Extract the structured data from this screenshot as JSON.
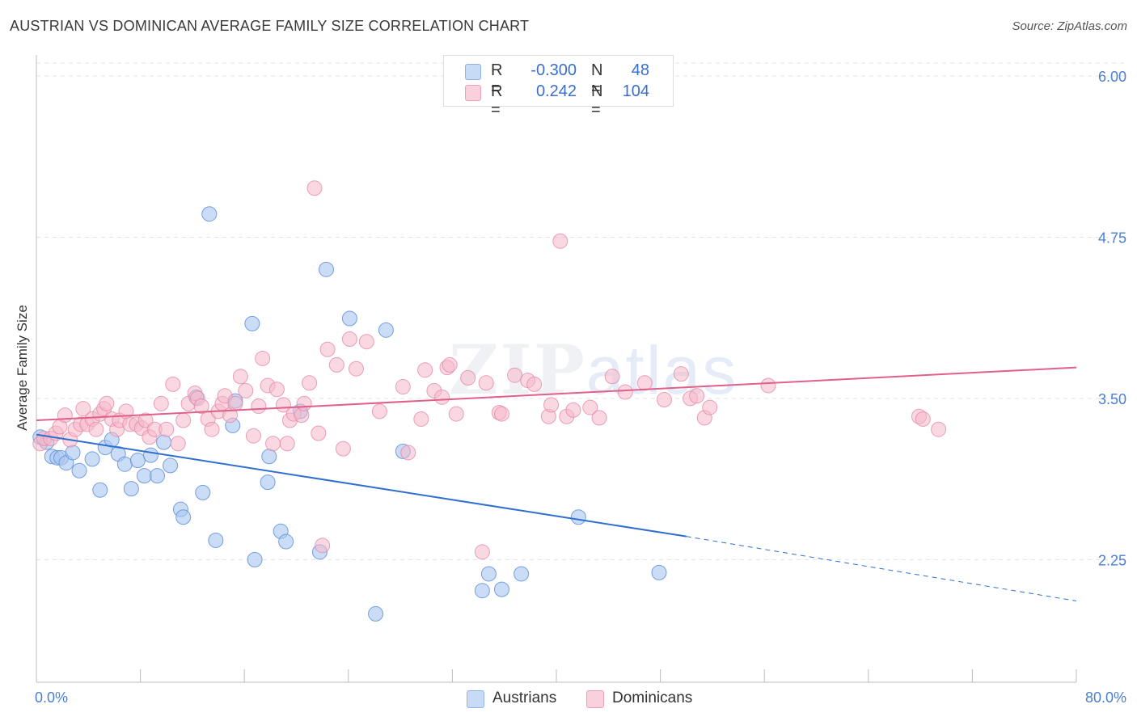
{
  "title": "AUSTRIAN VS DOMINICAN AVERAGE FAMILY SIZE CORRELATION CHART",
  "source": "Source: ZipAtlas.com",
  "watermark": {
    "zip": "ZIP",
    "atlas": "atlas"
  },
  "legend": {
    "rows": [
      {
        "r_label": "R =",
        "r_value": "-0.300",
        "n_label": "N =",
        "n_value": "48",
        "color": "#a9c6f0"
      },
      {
        "r_label": "R =",
        "r_value": "0.242",
        "n_label": "N =",
        "n_value": "104",
        "color": "#f6b8cb"
      }
    ]
  },
  "bottom_legend": [
    {
      "label": "Austrians",
      "color": "#a9c6f0"
    },
    {
      "label": "Dominicans",
      "color": "#f6b8cb"
    }
  ],
  "colors": {
    "austrians_fill": "#a9c6f0",
    "austrians_stroke": "#5f8fdc",
    "austrians_line": "#2f6fd0",
    "dominicans_fill": "#f6b8cb",
    "dominicans_stroke": "#e48aa8",
    "dominicans_line": "#e0608a",
    "grid": "#e3e3e3",
    "tick_text": "#4a7fd4"
  },
  "chart_data": {
    "type": "scatter",
    "title": "AUSTRIAN VS DOMINICAN AVERAGE FAMILY SIZE CORRELATION CHART",
    "xlabel": "",
    "ylabel": "Average Family Size",
    "xlim": [
      0,
      80
    ],
    "ylim": [
      1.3,
      6.1
    ],
    "x_tick_labels": [
      "0.0%",
      "80.0%"
    ],
    "y_ticks": [
      2.25,
      3.5,
      4.75,
      6.0
    ],
    "y_tick_labels": [
      "2.25",
      "3.50",
      "4.75",
      "6.00"
    ],
    "grid": true,
    "legend_position": "top-center",
    "series": [
      {
        "name": "Austrians",
        "points": [
          [
            0.3,
            3.2
          ],
          [
            0.8,
            3.16
          ],
          [
            1.2,
            3.05
          ],
          [
            1.6,
            3.04
          ],
          [
            1.9,
            3.04
          ],
          [
            2.3,
            3.0
          ],
          [
            2.8,
            3.08
          ],
          [
            3.3,
            2.94
          ],
          [
            4.3,
            3.03
          ],
          [
            4.9,
            2.79
          ],
          [
            5.3,
            3.12
          ],
          [
            5.8,
            3.18
          ],
          [
            6.3,
            3.07
          ],
          [
            6.8,
            2.99
          ],
          [
            7.3,
            2.8
          ],
          [
            7.8,
            3.02
          ],
          [
            8.3,
            2.9
          ],
          [
            8.8,
            3.06
          ],
          [
            9.3,
            2.9
          ],
          [
            9.8,
            3.16
          ],
          [
            10.3,
            2.98
          ],
          [
            11.1,
            2.64
          ],
          [
            11.3,
            2.58
          ],
          [
            12.3,
            3.51
          ],
          [
            12.8,
            2.77
          ],
          [
            13.3,
            4.93
          ],
          [
            13.8,
            2.4
          ],
          [
            15.1,
            3.29
          ],
          [
            15.3,
            3.48
          ],
          [
            16.6,
            4.08
          ],
          [
            16.8,
            2.25
          ],
          [
            17.8,
            2.85
          ],
          [
            17.9,
            3.05
          ],
          [
            18.8,
            2.47
          ],
          [
            19.2,
            2.39
          ],
          [
            20.3,
            3.4
          ],
          [
            21.8,
            2.31
          ],
          [
            22.3,
            4.5
          ],
          [
            24.1,
            4.12
          ],
          [
            26.1,
            1.83
          ],
          [
            26.9,
            4.03
          ],
          [
            28.2,
            3.09
          ],
          [
            34.3,
            2.01
          ],
          [
            34.8,
            2.14
          ],
          [
            35.8,
            2.02
          ],
          [
            37.3,
            2.14
          ],
          [
            41.7,
            2.58
          ],
          [
            47.9,
            2.15
          ]
        ],
        "trend": {
          "x": [
            0,
            50
          ],
          "y": [
            3.22,
            2.43
          ],
          "dashed_to_x": 80,
          "dashed_y": 1.93
        }
      },
      {
        "name": "Dominicans",
        "points": [
          [
            0.3,
            3.15
          ],
          [
            0.6,
            3.19
          ],
          [
            1.1,
            3.19
          ],
          [
            1.5,
            3.23
          ],
          [
            1.8,
            3.28
          ],
          [
            2.2,
            3.37
          ],
          [
            2.6,
            3.18
          ],
          [
            3.0,
            3.26
          ],
          [
            3.4,
            3.3
          ],
          [
            3.6,
            3.42
          ],
          [
            3.9,
            3.3
          ],
          [
            4.3,
            3.34
          ],
          [
            4.6,
            3.26
          ],
          [
            4.9,
            3.38
          ],
          [
            5.2,
            3.42
          ],
          [
            5.4,
            3.46
          ],
          [
            5.8,
            3.34
          ],
          [
            6.2,
            3.26
          ],
          [
            6.4,
            3.33
          ],
          [
            6.9,
            3.4
          ],
          [
            7.2,
            3.3
          ],
          [
            7.7,
            3.3
          ],
          [
            8.1,
            3.27
          ],
          [
            8.4,
            3.33
          ],
          [
            8.7,
            3.2
          ],
          [
            9.1,
            3.26
          ],
          [
            9.6,
            3.46
          ],
          [
            10.0,
            3.26
          ],
          [
            10.5,
            3.61
          ],
          [
            10.9,
            3.15
          ],
          [
            11.3,
            3.33
          ],
          [
            11.7,
            3.46
          ],
          [
            12.2,
            3.54
          ],
          [
            12.4,
            3.5
          ],
          [
            12.7,
            3.44
          ],
          [
            13.2,
            3.34
          ],
          [
            13.5,
            3.26
          ],
          [
            14.0,
            3.4
          ],
          [
            14.3,
            3.46
          ],
          [
            14.5,
            3.52
          ],
          [
            14.9,
            3.37
          ],
          [
            15.3,
            3.46
          ],
          [
            15.7,
            3.67
          ],
          [
            16.1,
            3.56
          ],
          [
            16.7,
            3.21
          ],
          [
            17.1,
            3.44
          ],
          [
            17.4,
            3.81
          ],
          [
            17.8,
            3.6
          ],
          [
            18.2,
            3.15
          ],
          [
            18.5,
            3.57
          ],
          [
            19.0,
            3.45
          ],
          [
            19.3,
            3.15
          ],
          [
            19.5,
            3.33
          ],
          [
            19.8,
            3.38
          ],
          [
            20.4,
            3.37
          ],
          [
            20.6,
            3.46
          ],
          [
            21.0,
            3.62
          ],
          [
            21.4,
            5.13
          ],
          [
            21.7,
            3.23
          ],
          [
            22.0,
            2.36
          ],
          [
            22.4,
            3.88
          ],
          [
            23.1,
            3.76
          ],
          [
            23.6,
            3.11
          ],
          [
            24.1,
            3.96
          ],
          [
            24.6,
            3.73
          ],
          [
            25.4,
            3.94
          ],
          [
            26.4,
            3.4
          ],
          [
            28.2,
            3.59
          ],
          [
            28.6,
            3.08
          ],
          [
            29.6,
            3.34
          ],
          [
            29.9,
            3.72
          ],
          [
            30.6,
            3.56
          ],
          [
            31.2,
            3.51
          ],
          [
            31.6,
            3.74
          ],
          [
            31.8,
            3.76
          ],
          [
            32.3,
            3.38
          ],
          [
            33.2,
            3.66
          ],
          [
            34.3,
            2.31
          ],
          [
            34.6,
            3.62
          ],
          [
            35.6,
            3.39
          ],
          [
            35.8,
            3.38
          ],
          [
            36.8,
            3.68
          ],
          [
            37.8,
            3.64
          ],
          [
            38.3,
            3.61
          ],
          [
            39.4,
            3.36
          ],
          [
            39.6,
            3.45
          ],
          [
            40.3,
            4.72
          ],
          [
            40.8,
            3.36
          ],
          [
            41.3,
            3.41
          ],
          [
            42.6,
            3.43
          ],
          [
            43.3,
            3.35
          ],
          [
            44.3,
            3.67
          ],
          [
            45.3,
            3.55
          ],
          [
            46.8,
            3.62
          ],
          [
            48.3,
            3.49
          ],
          [
            49.6,
            3.69
          ],
          [
            50.3,
            3.5
          ],
          [
            50.8,
            3.52
          ],
          [
            51.4,
            3.35
          ],
          [
            51.8,
            3.43
          ],
          [
            56.3,
            3.6
          ],
          [
            67.9,
            3.36
          ],
          [
            68.2,
            3.34
          ],
          [
            69.4,
            3.26
          ]
        ],
        "trend": {
          "x": [
            0,
            80
          ],
          "y": [
            3.33,
            3.74
          ]
        }
      }
    ]
  }
}
